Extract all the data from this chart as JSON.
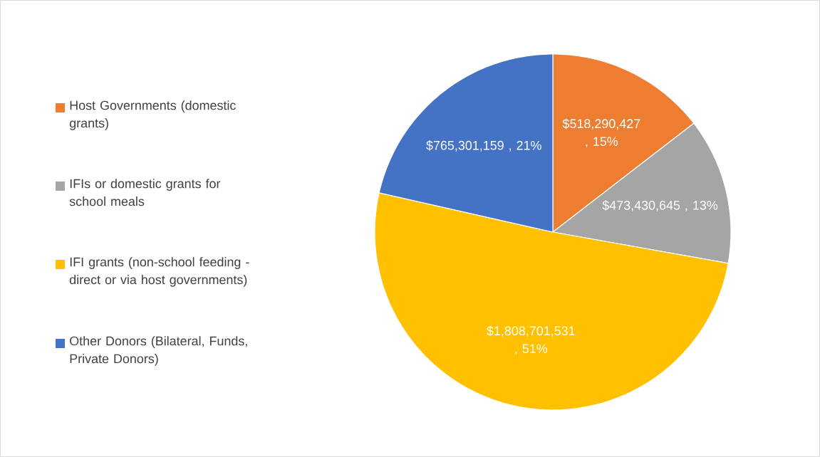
{
  "chart_data": {
    "type": "pie",
    "categories": [
      "Host Governments (domestic grants)",
      "IFIs or domestic grants for school meals",
      "IFI grants (non-school feeding - direct or via host governments)",
      "Other Donors (Bilateral, Funds, Private Donors)"
    ],
    "values": [
      518290427,
      473430645,
      1808701531,
      765301159
    ],
    "colors": [
      "#ed7d31",
      "#a5a5a5",
      "#ffc000",
      "#4472c4"
    ],
    "value_labels": [
      "$518,290,427 , 15%",
      "$473,430,645 , 13%",
      "$1,808,701,531 , 51%",
      "$765,301,159 , 21%"
    ],
    "legend": "left"
  }
}
